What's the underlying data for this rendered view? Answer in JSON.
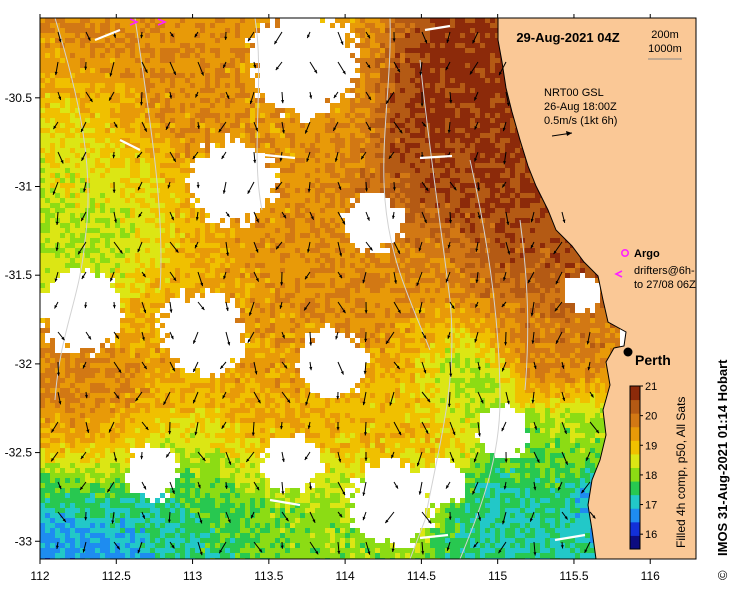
{
  "map": {
    "timestamp": "29-Aug-2021 04Z",
    "contours": {
      "shallow": "200m",
      "deep": "1000m"
    },
    "current_source": {
      "line1": "NRT00 GSL",
      "line2": "26-Aug 18:00Z",
      "line3": "0.5m/s (1kt 6h)"
    },
    "legend": {
      "argo_label": "Argo",
      "drifters_line1": "drifters@6h-",
      "drifters_line2": "to 27/08 06Z"
    },
    "city": {
      "name": "Perth",
      "lon": 115.86,
      "lat": -31.95
    },
    "lon_range": [
      112,
      116.3
    ],
    "lat_range": [
      -33.1,
      -30.05
    ],
    "lon_ticks": [
      "112",
      "112.5",
      "113",
      "113.5",
      "114",
      "114.5",
      "115",
      "115.5",
      "116"
    ],
    "lat_ticks": [
      "-30.5",
      "-31",
      "-31.5",
      "-32",
      "-32.5",
      "-33"
    ],
    "colorbar": {
      "min": 15.5,
      "max": 21,
      "ticks": [
        "16",
        "17",
        "18",
        "19",
        "20",
        "21"
      ],
      "label": "Filled 4h comp, p50, All Sats",
      "colors": [
        "#0c0c80",
        "#1230d8",
        "#1e8cf0",
        "#22c8c8",
        "#28c850",
        "#8cdc14",
        "#dce614",
        "#f0c000",
        "#e89a08",
        "#d27814",
        "#b45a14",
        "#8c2a0a"
      ]
    },
    "credit": "IMOS 31-Aug-2021 01:14 Hobart",
    "copyright": "©"
  }
}
